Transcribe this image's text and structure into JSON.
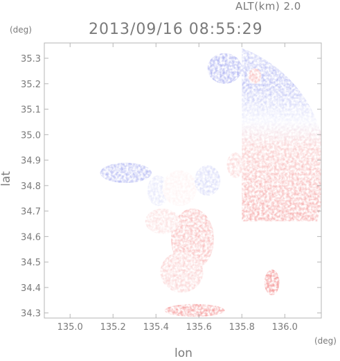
{
  "header": {
    "altitude_label": "ALT(km) 2.0",
    "timestamp": "2013/09/16 08:55:29"
  },
  "chart_data": {
    "type": "heatmap",
    "title": "2013/09/16 08:55:29",
    "xlabel": "lon",
    "ylabel": "lat",
    "x_unit": "(deg)",
    "y_unit": "(deg)",
    "xlim": [
      134.88,
      136.17
    ],
    "ylim": [
      34.28,
      35.36
    ],
    "x_ticks": [
      "135.0",
      "135.2",
      "135.4",
      "135.6",
      "135.8",
      "136.0"
    ],
    "y_ticks": [
      "34.3",
      "34.4",
      "34.5",
      "34.6",
      "34.7",
      "34.8",
      "34.9",
      "35.0",
      "35.1",
      "35.2",
      "35.3"
    ],
    "colors": {
      "approaching": "#6f78e8",
      "receding": "#f07070",
      "neutral": "#ffffff",
      "frame": "#b5b5b5"
    },
    "regions": [
      {
        "shape": "sector",
        "center": [
          135.55,
          34.73
        ],
        "radius_deg": 0.62,
        "lon_min": 135.8,
        "lat_min": 34.66,
        "lat_max": 35.34,
        "gradient": [
          [
            34.66,
            0.65
          ],
          [
            34.95,
            0.4
          ],
          [
            35.05,
            -0.1
          ],
          [
            35.2,
            -0.55
          ],
          [
            35.34,
            -0.4
          ]
        ]
      },
      {
        "shape": "ellipse",
        "center": [
          135.26,
          34.85
        ],
        "size": [
          0.12,
          0.04
        ],
        "value": -0.55
      },
      {
        "shape": "ellipse",
        "center": [
          135.41,
          34.78
        ],
        "size": [
          0.05,
          0.06
        ],
        "value": -0.2
      },
      {
        "shape": "ellipse",
        "center": [
          135.51,
          34.79
        ],
        "size": [
          0.08,
          0.07
        ],
        "value": 0.1
      },
      {
        "shape": "ellipse",
        "center": [
          135.64,
          34.82
        ],
        "size": [
          0.06,
          0.06
        ],
        "value": -0.3
      },
      {
        "shape": "ellipse",
        "center": [
          135.57,
          34.59
        ],
        "size": [
          0.1,
          0.12
        ],
        "value": 0.5
      },
      {
        "shape": "ellipse",
        "center": [
          135.43,
          34.66
        ],
        "size": [
          0.08,
          0.05
        ],
        "value": 0.25
      },
      {
        "shape": "ellipse",
        "center": [
          135.52,
          34.46
        ],
        "size": [
          0.1,
          0.08
        ],
        "value": 0.35
      },
      {
        "shape": "ellipse",
        "center": [
          135.94,
          34.42
        ],
        "size": [
          0.035,
          0.05
        ],
        "value": 0.85
      },
      {
        "shape": "ellipse",
        "center": [
          135.58,
          34.31
        ],
        "size": [
          0.14,
          0.025
        ],
        "value": 0.75
      },
      {
        "shape": "ellipse",
        "center": [
          135.77,
          34.88
        ],
        "size": [
          0.04,
          0.05
        ],
        "value": 0.3
      },
      {
        "shape": "ellipse",
        "center": [
          135.86,
          35.23
        ],
        "size": [
          0.03,
          0.03
        ],
        "value": 0.5
      },
      {
        "shape": "ellipse",
        "center": [
          135.72,
          35.26
        ],
        "size": [
          0.08,
          0.06
        ],
        "value": -0.6
      }
    ]
  }
}
